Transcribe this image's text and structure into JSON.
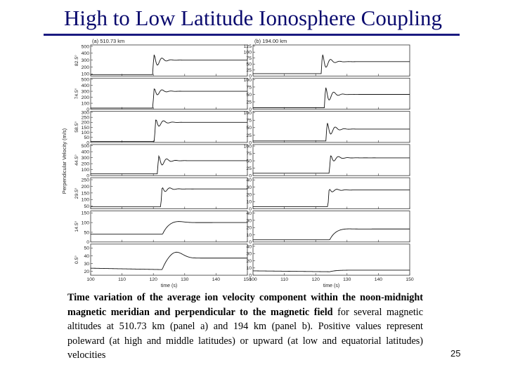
{
  "title": "High to Low Latitude Ionosphere Coupling",
  "page_number": "25",
  "caption": {
    "bold_part": "Time variation of the average ion velocity component within the noon-midnight magnetic meridian and perpendicular to the magnetic field",
    "normal_part": " for several magnetic altitudes at 510.73 km (panel a) and 194 km (panel b). Positive values represent poleward (at high and middle latitudes) or upward (at low and equatorial latitudes) velocities"
  },
  "chart_data": {
    "type": "line",
    "ylabel": "Perpendicular Velocity (m/s)",
    "xlabel": "time (s)",
    "x_ticks": [
      "100",
      "110",
      "120",
      "130",
      "140",
      "150"
    ],
    "xlim": [
      100,
      150
    ],
    "panels": [
      {
        "label": "(a) 510.73 km",
        "rows": [
          {
            "latitude": "82.5°",
            "yticks": [
              "100",
              "200",
              "300",
              "400",
              "500"
            ],
            "ylim": [
              70,
              520
            ],
            "baseline": 90,
            "final": 300,
            "peak": 470,
            "t_step": 120.0,
            "smooth": false,
            "dip_depth": 0
          },
          {
            "latitude": "74.5°",
            "yticks": [
              "0",
              "100",
              "200",
              "300",
              "400",
              "500"
            ],
            "ylim": [
              0,
              520
            ],
            "baseline": 20,
            "final": 300,
            "peak": 440,
            "t_step": 120.0,
            "smooth": false,
            "dip_depth": 0
          },
          {
            "latitude": "58.5°",
            "yticks": [
              "0",
              "50",
              "100",
              "150",
              "200",
              "250",
              "300"
            ],
            "ylim": [
              0,
              310
            ],
            "baseline": 10,
            "final": 200,
            "peak": 290,
            "t_step": 120.5,
            "smooth": false,
            "dip_depth": 0
          },
          {
            "latitude": "44.5°",
            "yticks": [
              "0",
              "100",
              "200",
              "300",
              "400",
              "500"
            ],
            "ylim": [
              0,
              520
            ],
            "baseline": 30,
            "final": 250,
            "peak": 420,
            "t_step": 121.5,
            "smooth": false,
            "dip_depth": 0
          },
          {
            "latitude": "29.5°",
            "yticks": [
              "50",
              "100",
              "150",
              "200",
              "250"
            ],
            "ylim": [
              30,
              265
            ],
            "baseline": 45,
            "final": 180,
            "peak": 225,
            "t_step": 122.5,
            "smooth": false,
            "dip_depth": 0
          },
          {
            "latitude": "14.5°",
            "yticks": [
              "0",
              "50",
              "100",
              "150"
            ],
            "ylim": [
              0,
              160
            ],
            "baseline": 40,
            "final": 100,
            "peak": 110,
            "t_step": 123.0,
            "smooth": true,
            "dip_depth": 0
          },
          {
            "latitude": "0.5°",
            "yticks": [
              "20",
              "30",
              "40",
              "50"
            ],
            "ylim": [
              15,
              55
            ],
            "baseline": 24,
            "final": 37,
            "peak": 46,
            "t_step": 123.0,
            "smooth": true,
            "dip_depth": 3
          }
        ]
      },
      {
        "label": "(b) 194.00 km",
        "rows": [
          {
            "latitude": "",
            "yticks": [
              "0",
              "25",
              "50",
              "75",
              "100",
              "125"
            ],
            "ylim": [
              0,
              130
            ],
            "baseline": 10,
            "final": 60,
            "peak": 115,
            "t_step": 122.0,
            "smooth": false,
            "dip_depth": 0
          },
          {
            "latitude": "",
            "yticks": [
              "0",
              "25",
              "50",
              "75",
              "100"
            ],
            "ylim": [
              0,
              105
            ],
            "baseline": 5,
            "final": 50,
            "peak": 95,
            "t_step": 123.0,
            "smooth": false,
            "dip_depth": 0
          },
          {
            "latitude": "",
            "yticks": [
              "0",
              "25",
              "50",
              "75",
              "100"
            ],
            "ylim": [
              0,
              105
            ],
            "baseline": 5,
            "final": 45,
            "peak": 85,
            "t_step": 123.5,
            "smooth": false,
            "dip_depth": 0
          },
          {
            "latitude": "",
            "yticks": [
              "0",
              "25",
              "50",
              "75",
              "100"
            ],
            "ylim": [
              0,
              105
            ],
            "baseline": 8,
            "final": 60,
            "peak": 85,
            "t_step": 124.5,
            "smooth": false,
            "dip_depth": 0
          },
          {
            "latitude": "",
            "yticks": [
              "0",
              "10",
              "20",
              "30",
              "40"
            ],
            "ylim": [
              0,
              43
            ],
            "baseline": 3,
            "final": 26,
            "peak": 32,
            "t_step": 124.0,
            "smooth": false,
            "dip_depth": 0
          },
          {
            "latitude": "",
            "yticks": [
              "0",
              "10",
              "20",
              "30",
              "40"
            ],
            "ylim": [
              0,
              43
            ],
            "baseline": 3,
            "final": 18,
            "peak": 19,
            "t_step": 124.5,
            "smooth": true,
            "dip_depth": 0
          },
          {
            "latitude": "",
            "yticks": [
              "0",
              "10",
              "20",
              "30",
              "40"
            ],
            "ylim": [
              0,
              43
            ],
            "baseline": 6,
            "final": 7,
            "peak": 7,
            "t_step": 124.5,
            "smooth": true,
            "dip_depth": 2
          }
        ]
      }
    ]
  }
}
